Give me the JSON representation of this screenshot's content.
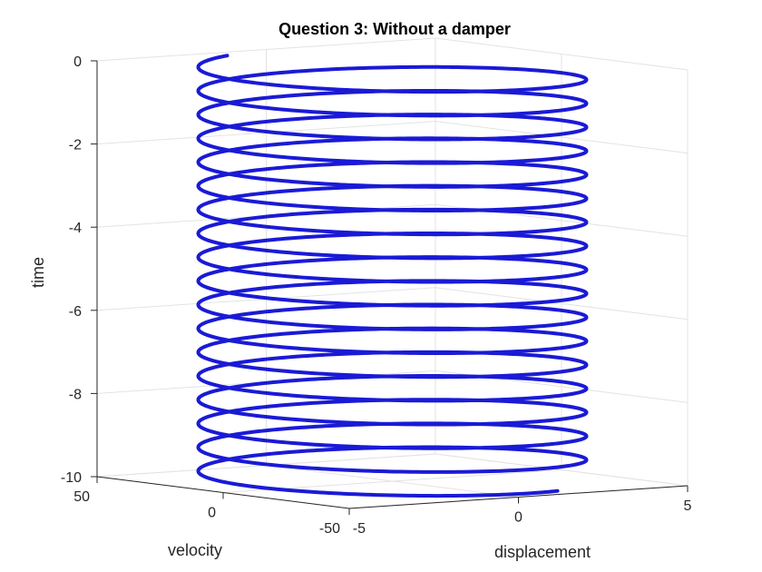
{
  "chart_data": {
    "type": "line3d",
    "title": "Question 3: Without a damper",
    "xlabel": "displacement",
    "ylabel": "velocity",
    "zlabel": "time",
    "xlim": [
      -5,
      5
    ],
    "ylim": [
      -50,
      50
    ],
    "zlim": [
      -10,
      0
    ],
    "xticks": [
      "-5",
      "0",
      "5"
    ],
    "yticks": [
      "-50",
      "0",
      "50"
    ],
    "zticks": [
      "0",
      "-2",
      "-4",
      "-6",
      "-8",
      "-10"
    ],
    "grid": true,
    "series": [
      {
        "color": "#1a1ad6",
        "description_of_curve": null,
        "turns": 17.5,
        "t_range": [
          0,
          -10
        ]
      }
    ]
  }
}
